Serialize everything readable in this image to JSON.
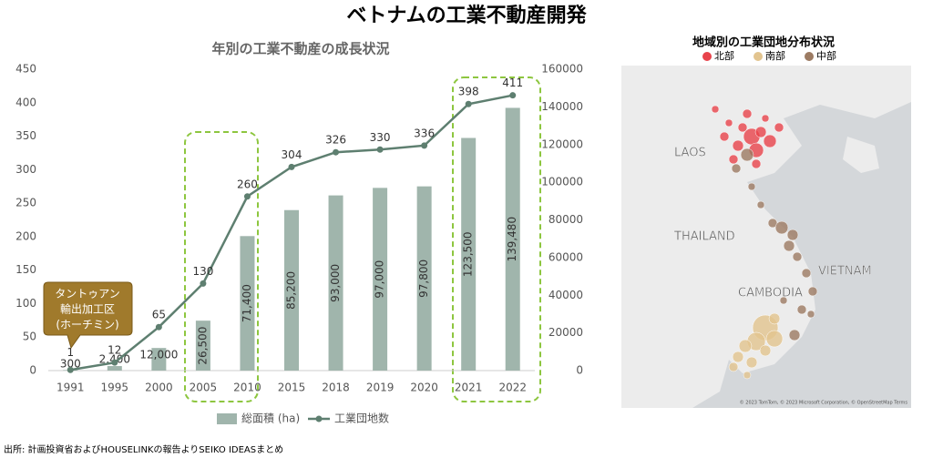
{
  "title": "ベトナムの工業不動産開発",
  "source": "出所: 計画投資省およびHOUSELINKの報告よりSEIKO IDEASまとめ",
  "chart_data": {
    "type": "bar-line",
    "title": "年別の工業不動産の成長状況",
    "categories": [
      "1991",
      "1995",
      "2000",
      "2005",
      "2010",
      "2015",
      "2018",
      "2019",
      "2020",
      "2021",
      "2022"
    ],
    "series": [
      {
        "name": "総面積 (ha)",
        "type": "bar",
        "axis": "y2",
        "color": "#a0b5ac",
        "values": [
          300,
          2400,
          12000,
          26500,
          71400,
          85200,
          93000,
          97000,
          97800,
          123500,
          139480
        ],
        "value_labels": [
          "300",
          "2,400",
          "12,000",
          "26,500",
          "71,400",
          "85,200",
          "93,000",
          "97,000",
          "97,800",
          "123,500",
          "139,480"
        ]
      },
      {
        "name": "工業団地数",
        "type": "line",
        "axis": "y",
        "color": "#5e7f70",
        "values": [
          1,
          12,
          65,
          130,
          260,
          304,
          326,
          330,
          336,
          398,
          411
        ]
      }
    ],
    "ylim": [
      0,
      450
    ],
    "yticks": [
      0,
      50,
      100,
      150,
      200,
      250,
      300,
      350,
      400,
      450
    ],
    "y2lim": [
      0,
      160000
    ],
    "y2ticks": [
      0,
      20000,
      40000,
      60000,
      80000,
      100000,
      120000,
      140000,
      160000
    ],
    "annotation": [
      "タントゥアン",
      "輸出加工区",
      "(ホーチミン)"
    ]
  },
  "map": {
    "title": "地域別の工業団地分布状況",
    "legend": [
      {
        "name": "北部",
        "color": "#e8434b"
      },
      {
        "name": "南部",
        "color": "#e2c48f"
      },
      {
        "name": "中部",
        "color": "#9c7b63"
      }
    ],
    "labels": [
      "LAOS",
      "THAILAND",
      "CAMBODIA",
      "VIETNAM"
    ],
    "attribution": "© 2023 TomTom, © 2023 Microsoft Corporation, © OpenStreetMap Terms"
  }
}
